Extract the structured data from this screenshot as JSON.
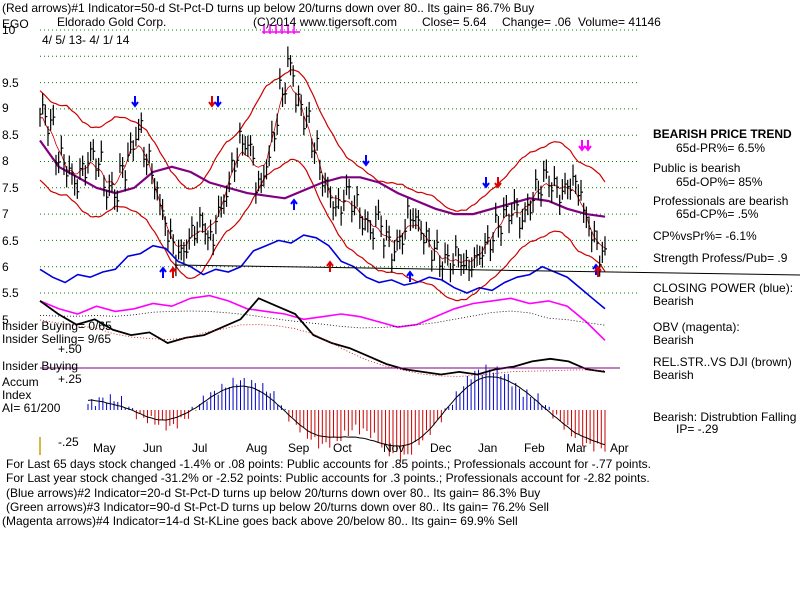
{
  "header": {
    "line1": "(Red arrows)#1 Indicator=50-d St-Pct-D turns up below 20/turns down over 80.. Its gain= 86.7% Buy",
    "symbol": "EGO",
    "company": "Eldorado Gold Corp.",
    "copyright": "(C)2014 www.tigersoft.com",
    "close": "Close=  5.64",
    "change": "Change= .06",
    "volume": "Volume= 41146",
    "date_range": "4/ 5/ 13- 4/ 1/ 14"
  },
  "left_labels": {
    "insider_buying_1": "Insider Buying= 0/65",
    "insider_selling": "Insider Selling= 9/65",
    "plus_50": "+.50",
    "insider_buying_2": "Insider Buying",
    "accum": "Accum",
    "index": "Index",
    "ai": "AI= 61/200",
    "plus_25": "+.25",
    "minus_25": "-.25"
  },
  "right_panel": {
    "trend_title": "BEARISH PRICE TREND",
    "pr": "65d-PR%= 6.5%",
    "public": "Public is bearish",
    "op": "65d-OP%= 85%",
    "professionals": "Professionals are bearish",
    "cp": "65d-CP%= .5%",
    "cp_vs_pr": "CP%vsPr%= -6.1%",
    "strength": "Strength Profess/Pub= .9",
    "closing_power_label": "CLOSING POWER (blue):",
    "closing_power_value": "Bearish",
    "obv_label": "OBV (magenta):",
    "obv_value": "Bearish",
    "relstr_label": "REL.STR..VS DJI (brown)",
    "relstr_value": "Bearish",
    "distribution": "Bearish: Distrubtion Falling",
    "ip": "IP= -.29"
  },
  "footer": {
    "line1": "For Last 65 days stock changed -1.4% or  .08 points:  Public accounts for  .85 points.;  Professionals account for -.77 points.",
    "line2": "For Last year stock changed -31.2% or -2.52 points:  Public accounts for  .3 points.;  Professionals account for -2.82 points.",
    "line3": "(Blue arrows)#2 Indicator=20-d St-Pct-D turns up below 20/turns down over 80.. Its gain= 86.3% Buy",
    "line4": "(Green arrows)#3 Indicator=90-d St-Pct-D turns up below 20/turns down over 80.. Its gain= 76.2% Sell",
    "line5": "(Magenta arrows)#4 Indicator=14-d St-KLine goes back above 20/below 80.. Its gain= 69.9% Sell"
  },
  "colors": {
    "price": "#000000",
    "band": "#cc0000",
    "ma": "#800080",
    "closing_power": "#0000dd",
    "obv": "#ff00ff",
    "relstr": "#000000",
    "accum_pos": "#0000cc",
    "accum_neg": "#cc0000",
    "grid": "#008000",
    "arrow_red": "#dd0000",
    "arrow_blue": "#0000ff",
    "arrow_magenta": "#ff00ff"
  },
  "chart_data": {
    "type": "line",
    "title": "Eldorado Gold Corp.",
    "price_axis": {
      "ticks": [
        "10",
        "9.5",
        "9",
        "8.5",
        "8",
        "7.5",
        "7",
        "6.5",
        "6",
        "5.5",
        "5"
      ],
      "ylim": [
        5,
        10
      ]
    },
    "x_ticks": [
      "May",
      "Jun",
      "Jul",
      "Aug",
      "Sep",
      "Oct",
      "Nov",
      "Dec",
      "Jan",
      "Feb",
      "Mar",
      "Apr"
    ],
    "price": [
      8.4,
      8.2,
      7.6,
      7.4,
      7.1,
      7.3,
      7.6,
      7.5,
      7.0,
      6.9,
      7.3,
      7.7,
      8.1,
      7.6,
      7.1,
      6.5,
      6.0,
      5.7,
      5.9,
      6.2,
      6.3,
      6.0,
      6.5,
      6.9,
      7.5,
      7.9,
      7.7,
      7.0,
      7.4,
      8.1,
      8.9,
      9.3,
      8.6,
      8.3,
      7.8,
      7.2,
      6.8,
      6.6,
      6.9,
      6.7,
      6.4,
      6.2,
      6.4,
      6.0,
      5.8,
      6.1,
      6.5,
      6.3,
      6.0,
      5.8,
      5.6,
      5.6,
      5.7,
      5.5,
      5.6,
      5.8,
      6.0,
      6.3,
      6.5,
      6.6,
      6.4,
      6.7,
      7.0,
      7.2,
      7.0,
      6.9,
      7.1,
      7.0,
      6.4,
      6.0,
      5.7
    ],
    "series": [
      {
        "values": [
          5.45,
          5.3,
          5.2,
          5.35,
          5.3,
          5.4,
          5.45,
          5.7,
          5.75,
          5.9,
          5.85,
          5.6,
          5.5,
          5.35,
          5.45,
          5.4,
          5.5,
          5.8,
          5.9,
          6.0,
          5.95,
          6.1,
          6.05,
          5.9,
          5.6,
          5.5,
          5.3,
          5.2,
          5.25,
          5.15,
          5.2,
          5.3,
          5.25,
          5.1,
          5.0,
          5.1,
          5.05,
          5.2,
          5.3,
          5.35,
          5.5,
          5.4,
          5.3,
          5.1,
          4.9,
          4.7
        ]
      },
      {
        "values": [
          4.85,
          4.7,
          4.6,
          4.75,
          4.65,
          4.7,
          4.8,
          4.75,
          4.9,
          4.95,
          4.85,
          4.7,
          4.65,
          4.6,
          4.5,
          4.55,
          4.6,
          4.55,
          4.45,
          4.35,
          4.4,
          4.55,
          4.7,
          4.8,
          4.85,
          4.9,
          4.8,
          4.85,
          4.75,
          4.45,
          4.1
        ]
      },
      {
        "values": [
          4.85,
          4.6,
          4.4,
          4.5,
          4.3,
          4.2,
          4.25,
          4.05,
          4.15,
          4.2,
          4.35,
          4.5,
          4.9,
          4.75,
          4.6,
          4.2,
          4.05,
          3.95,
          3.8,
          3.65,
          3.55,
          3.5,
          3.45,
          3.5,
          3.45,
          3.55,
          3.6,
          3.7,
          3.75,
          3.7,
          3.55,
          3.5
        ]
      },
      {
        "values": [
          0.05,
          0.1,
          0.08,
          -0.05,
          -0.1,
          -0.15,
          -0.05,
          0.1,
          0.18,
          0.25,
          0.22,
          0.15,
          -0.05,
          -0.2,
          -0.3,
          -0.25,
          -0.15,
          -0.2,
          -0.35,
          -0.4,
          -0.25,
          -0.1,
          0.1,
          0.3,
          0.35,
          0.3,
          0.15,
          0.1,
          -0.05,
          -0.2,
          -0.3,
          -0.32
        ]
      },
      {
        "values": [
          7.9,
          7.4,
          7.2,
          7.0,
          6.9,
          7.0,
          7.3,
          7.4,
          7.3,
          7.1,
          7.0,
          6.9,
          6.85,
          6.8,
          6.95,
          7.1,
          7.2,
          7.2,
          7.1,
          6.9,
          6.75,
          6.6,
          6.5,
          6.5,
          6.6,
          6.7,
          6.8,
          6.75,
          6.6,
          6.5,
          6.45
        ]
      }
    ]
  }
}
